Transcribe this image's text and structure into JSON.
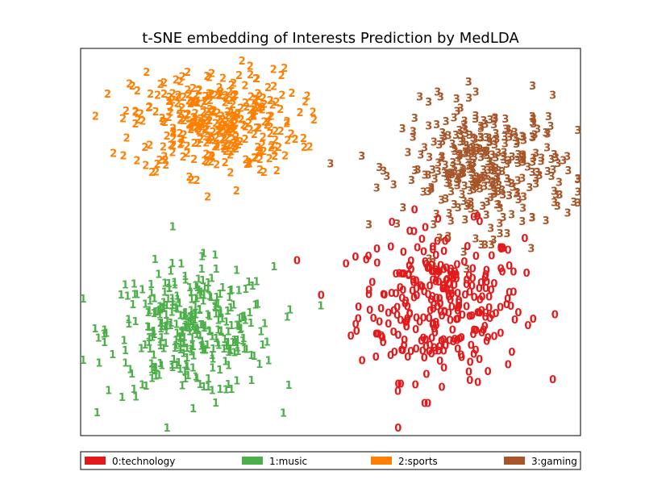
{
  "chart_data": {
    "type": "scatter",
    "title": "t-SNE embedding of Interests Prediction by MedLDA",
    "xlabel": "",
    "ylabel": "",
    "xlim": [
      0,
      100
    ],
    "ylim": [
      0,
      100
    ],
    "grid": false,
    "axis_ticks": false,
    "legend_placement": "bottom",
    "marker_style": "class-digit-text",
    "series": [
      {
        "label": "0",
        "name": "0:technology",
        "color": "#e31a1c",
        "center": [
          72,
          33
        ],
        "spread": [
          11,
          13
        ],
        "count": 300
      },
      {
        "label": "1",
        "name": "1:music",
        "color": "#4daf4a",
        "center": [
          22,
          26
        ],
        "spread": [
          11,
          11
        ],
        "count": 330
      },
      {
        "label": "2",
        "name": "2:sports",
        "color": "#ff7f00",
        "center": [
          27,
          80
        ],
        "spread": [
          11,
          9
        ],
        "count": 330
      },
      {
        "label": "3",
        "name": "3:gaming",
        "color": "#a65628",
        "center": [
          81,
          68
        ],
        "spread": [
          11,
          11
        ],
        "count": 330
      }
    ]
  }
}
